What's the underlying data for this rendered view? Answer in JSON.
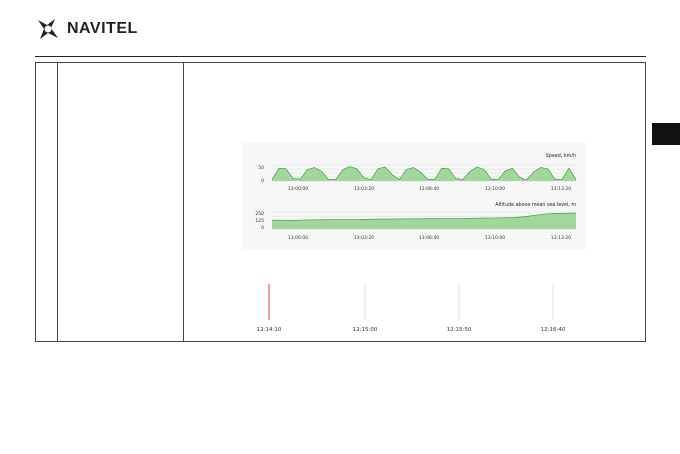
{
  "header": {
    "brand": "NAVITEL",
    "logo_icon": "navitel-hand-icon"
  },
  "chart_data": [
    {
      "type": "area",
      "title": "Speed, km/h",
      "x_tick_labels": [
        "13:00:00",
        "13:03:20",
        "13:06:40",
        "13:10:00",
        "13:13:20"
      ],
      "y_tick_labels": [
        "50",
        "0"
      ],
      "ylim": [
        0,
        50
      ],
      "grid": true,
      "series": [
        {
          "values": [
            5,
            40,
            38,
            8,
            6,
            36,
            42,
            30,
            5,
            4,
            35,
            45,
            38,
            10,
            4,
            38,
            44,
            20,
            4,
            36,
            42,
            28,
            6,
            4,
            40,
            38,
            8,
            5,
            30,
            44,
            36,
            6,
            4,
            32,
            40,
            12,
            3,
            28,
            42,
            38,
            6,
            4,
            40,
            5
          ]
        }
      ],
      "colors": {
        "fill": "#9fd89a",
        "line": "#3a8f3a"
      }
    },
    {
      "type": "area",
      "title": "Altitude above mean sea level, m",
      "x_tick_labels": [
        "13:00:00",
        "13:03:20",
        "13:06:40",
        "13:10:00",
        "13:13:20"
      ],
      "y_tick_labels": [
        "250",
        "125",
        "0"
      ],
      "ylim": [
        0,
        250
      ],
      "grid": true,
      "series": [
        {
          "values": [
            130,
            130,
            128,
            132,
            135,
            135,
            138,
            140,
            140,
            142,
            145,
            145,
            148,
            150,
            150,
            152,
            152,
            155,
            155,
            158,
            160,
            162,
            165,
            168,
            180,
            200,
            220,
            230,
            232,
            234
          ]
        }
      ],
      "colors": {
        "fill": "#9fd89a",
        "line": "#3a8f3a"
      }
    }
  ],
  "timeline": {
    "labels": [
      "12:14:10",
      "12:15:00",
      "12:15:50",
      "12:16:40"
    ],
    "marker_color": "#e23b3b"
  }
}
